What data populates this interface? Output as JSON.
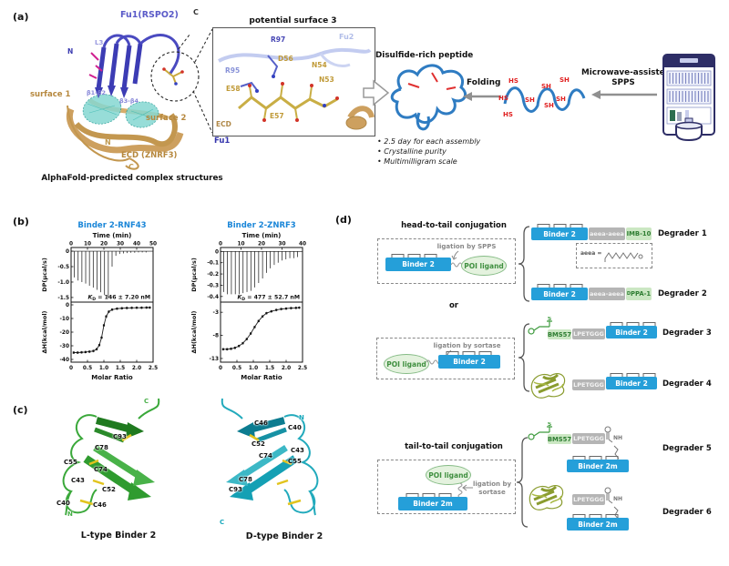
{
  "panels": {
    "a": {
      "label": "(a)",
      "structure": {
        "fu1": "Fu1(RSPO2)",
        "c_top": "C",
        "l3": "L3",
        "n_blue": "N",
        "surface1": "surface 1",
        "b12": "β1-β2",
        "b34": "β3-β4",
        "surface2": "surface 2",
        "n_tan": "N",
        "c_tan": "C",
        "ecd": "ECD (ZNRF3)",
        "caption": "AlphaFold-predicted complex structures"
      },
      "inset": {
        "title": "potential surface 3",
        "fu2": "Fu2",
        "r97": "R97",
        "r95": "R95",
        "d56": "D56",
        "n54": "N54",
        "n53": "N53",
        "e58": "E58",
        "e57": "E57",
        "ecd": "ECD",
        "fu1": "Fu1"
      },
      "scheme": {
        "peptide_title": "Disulfide-rich peptide",
        "folding": "Folding",
        "spps_line1": "Microwave-assisted",
        "spps_line2": "SPPS",
        "thiol_labels": [
          "HS",
          "SH",
          "SH",
          "HS",
          "SH",
          "SH",
          "SH",
          "HS"
        ],
        "bullets": [
          "• 2.5 day for each assembly",
          "• Crystalline purity",
          "• Multimilligram scale"
        ]
      }
    },
    "b": {
      "label": "(b)"
    },
    "c": {
      "label": "(c)",
      "ltype": {
        "caption": "L-type Binder 2",
        "n": "N",
        "c": "C",
        "cys": [
          "C93",
          "C78",
          "C55",
          "C74",
          "C43",
          "C52",
          "C40",
          "C46"
        ]
      },
      "dtype": {
        "caption": "D-type Binder 2",
        "n": "N",
        "c": "C",
        "cys": [
          "C46",
          "C40",
          "C52",
          "C43",
          "C74",
          "C55",
          "C78",
          "C93"
        ]
      }
    },
    "d": {
      "label": "(d)",
      "head_to_tail": "head-to-tail conjugation",
      "tail_to_tail": "tail-to-tail conjugation",
      "or_label": "or",
      "binder2": "Binder 2",
      "binder2m": "Binder 2m",
      "poi_ligand": "POI ligand",
      "ligation_spps": "ligation by SPPS",
      "ligation_sortase": "ligation by sortase",
      "aeea_chip": "aeea-aeea",
      "aeea_def": "aeea =",
      "imb10": "IMB-10",
      "dppa1_sup": "D",
      "dppa1": "PPA-1",
      "bms57": "BMS57",
      "lpetggg": "LPETGGG",
      "nh": "NH",
      "chem_s": "S",
      "degraders": [
        "Degrader 1",
        "Degrader 2",
        "Degrader 3",
        "Degrader 4",
        "Degrader 5",
        "Degrader 6"
      ]
    }
  },
  "colors": {
    "binder_blue": "#259fd9",
    "chip_gray": "#b5b5b5",
    "chip_green_bg": "#cbe7c3",
    "chip_green_text": "#2e7d32",
    "itc_title_blue": "#1a86d8",
    "peptide_blue": "#2f7cc2",
    "disulfide_red": "#e03030",
    "ecd_tan": "#cda05f",
    "fu1_blue": "#3c3cb4",
    "ltype_green": "#2f9b2f",
    "dtype_teal": "#14a0b4"
  },
  "chart_data": [
    {
      "type": "line",
      "title": "Binder 2-RNF43",
      "title_color": "#1a86d8",
      "kd": {
        "k": "K",
        "sub": "D",
        "value": " = 146 ± 7.20 nM"
      },
      "top": {
        "xlabel": "Time (min)",
        "xlim": [
          0,
          50
        ],
        "xticks": [
          {
            "v": 0,
            "t": "0"
          },
          {
            "v": 10,
            "t": "10"
          },
          {
            "v": 20,
            "t": "20"
          },
          {
            "v": 30,
            "t": "30"
          },
          {
            "v": 40,
            "t": "40"
          },
          {
            "v": 50,
            "t": "50"
          }
        ],
        "ylabel": "DP(μcal/s)",
        "ylim": [
          -1.65,
          0.12
        ],
        "yticks": [
          {
            "v": 0,
            "t": "0"
          },
          {
            "v": -0.5,
            "t": "-0.5"
          },
          {
            "v": -1,
            "t": "-1.0"
          },
          {
            "v": -1.5,
            "t": "-1.5"
          }
        ],
        "injections": {
          "times": [
            2,
            4.3,
            6.6,
            8.9,
            11.2,
            13.5,
            15.8,
            18.1,
            20.4,
            22.7,
            25,
            27.3,
            29.6,
            31.9,
            34.2,
            36.5,
            38.8,
            41.1,
            43.4,
            45.7
          ],
          "depths": [
            -0.85,
            -0.95,
            -1.0,
            -1.05,
            -1.12,
            -1.18,
            -1.25,
            -1.33,
            -1.42,
            -1.5,
            -0.5,
            -0.15,
            -0.09,
            -0.07,
            -0.06,
            -0.05,
            -0.05,
            -0.04,
            -0.04,
            -0.04
          ]
        }
      },
      "bottom": {
        "xlabel": "Molar Ratio",
        "xlim": [
          0,
          2.5
        ],
        "xticks": [
          {
            "v": 0,
            "t": "0"
          },
          {
            "v": 0.5,
            "t": "0.5"
          },
          {
            "v": 1,
            "t": "1.0"
          },
          {
            "v": 1.5,
            "t": "1.5"
          },
          {
            "v": 2,
            "t": "2.0"
          },
          {
            "v": 2.5,
            "t": "2.5"
          }
        ],
        "ylabel": "ΔH(kcal/mol)",
        "ylim": [
          -42,
          2
        ],
        "yticks": [
          {
            "v": 0,
            "t": "0"
          },
          {
            "v": -10,
            "t": "-10"
          },
          {
            "v": -20,
            "t": "-20"
          },
          {
            "v": -30,
            "t": "-30"
          },
          {
            "v": -40,
            "t": "-40"
          }
        ],
        "points": {
          "x": [
            0.08,
            0.2,
            0.32,
            0.44,
            0.56,
            0.68,
            0.78,
            0.86,
            0.93,
            1.0,
            1.07,
            1.15,
            1.25,
            1.4,
            1.55,
            1.7,
            1.85,
            2.0,
            2.15,
            2.3,
            2.4
          ],
          "y": [
            -35,
            -35,
            -34.8,
            -34.6,
            -34.3,
            -33.8,
            -32.5,
            -29.5,
            -24,
            -15,
            -8.5,
            -5,
            -3.5,
            -2.8,
            -2.5,
            -2.3,
            -2.2,
            -2.1,
            -2.1,
            -2.0,
            -2.0
          ]
        }
      }
    },
    {
      "type": "line",
      "title": "Binder 2-ZNRF3",
      "title_color": "#1a86d8",
      "kd": {
        "k": "K",
        "sub": "D",
        "value": " = 477 ± 52.7 nM"
      },
      "top": {
        "xlabel": "Time (min)",
        "xlim": [
          0,
          40
        ],
        "xticks": [
          {
            "v": 0,
            "t": "0"
          },
          {
            "v": 10,
            "t": "10"
          },
          {
            "v": 20,
            "t": "20"
          },
          {
            "v": 30,
            "t": "30"
          },
          {
            "v": 40,
            "t": "40"
          }
        ],
        "ylabel": "DP(μcal/s)",
        "ylim": [
          -0.45,
          0.035
        ],
        "yticks": [
          {
            "v": 0,
            "t": "0"
          },
          {
            "v": -0.1,
            "t": "-0.1"
          },
          {
            "v": -0.2,
            "t": "-0.2"
          },
          {
            "v": -0.3,
            "t": "-0.3"
          },
          {
            "v": -0.4,
            "t": "-0.4"
          }
        ],
        "injections": {
          "times": [
            1.5,
            3.4,
            5.3,
            7.2,
            9.1,
            11,
            12.9,
            14.8,
            16.7,
            18.6,
            20.5,
            22.4,
            24.3,
            26.2,
            28.1,
            30,
            31.9,
            33.8,
            35.7,
            37.6
          ],
          "depths": [
            -0.36,
            -0.38,
            -0.38,
            -0.38,
            -0.38,
            -0.37,
            -0.36,
            -0.35,
            -0.32,
            -0.28,
            -0.24,
            -0.19,
            -0.15,
            -0.12,
            -0.1,
            -0.08,
            -0.07,
            -0.06,
            -0.06,
            -0.05
          ]
        }
      },
      "bottom": {
        "xlabel": "Molar Ratio",
        "xlim": [
          0,
          2.5
        ],
        "xticks": [
          {
            "v": 0,
            "t": "0"
          },
          {
            "v": 0.5,
            "t": "0.5"
          },
          {
            "v": 1,
            "t": "1.0"
          },
          {
            "v": 1.5,
            "t": "1.5"
          },
          {
            "v": 2,
            "t": "2.0"
          },
          {
            "v": 2.5,
            "t": "2.5"
          }
        ],
        "ylabel": "ΔH(kcal/mol)",
        "ylim": [
          -13.8,
          -0.8
        ],
        "yticks": [
          {
            "v": -3,
            "t": "-3"
          },
          {
            "v": -8,
            "t": "-8"
          },
          {
            "v": -13,
            "t": "-13"
          }
        ],
        "points": {
          "x": [
            0.08,
            0.2,
            0.32,
            0.44,
            0.56,
            0.68,
            0.8,
            0.92,
            1.04,
            1.16,
            1.28,
            1.4,
            1.55,
            1.7,
            1.85,
            2.0,
            2.15,
            2.3,
            2.4
          ],
          "y": [
            -11,
            -11,
            -10.9,
            -10.7,
            -10.3,
            -9.7,
            -8.8,
            -7.6,
            -6.2,
            -4.9,
            -3.9,
            -3.2,
            -2.8,
            -2.5,
            -2.3,
            -2.2,
            -2.1,
            -2.05,
            -2.0
          ]
        }
      }
    }
  ]
}
